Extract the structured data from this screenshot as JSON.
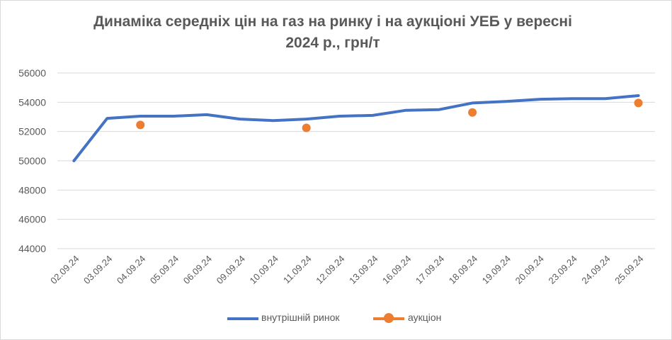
{
  "chart_data": {
    "type": "line",
    "title_line1": "Динаміка середніх цін на газ на ринку і на аукціоні УЕБ у вересні",
    "title_line2": "2024 р., грн/т",
    "categories": [
      "02.09.24",
      "03.09.24",
      "04.09.24",
      "05.09.24",
      "06.09.24",
      "09.09.24",
      "10.09.24",
      "11.09.24",
      "12.09.24",
      "13.09.24",
      "16.09.24",
      "17.09.24",
      "18.09.24",
      "19.09.24",
      "20.09.24",
      "23.09.24",
      "24.09.24",
      "25.09.24"
    ],
    "y_ticks": [
      "44000",
      "46000",
      "48000",
      "50000",
      "52000",
      "54000",
      "56000"
    ],
    "ylim": [
      44000,
      56000
    ],
    "grid": true,
    "legend_position": "bottom",
    "series": [
      {
        "name": "внутрішній ринок",
        "kind": "line",
        "color": "#4472c4",
        "values": [
          50000,
          52900,
          53050,
          53050,
          53150,
          52850,
          52750,
          52850,
          53050,
          53100,
          53450,
          53500,
          53950,
          54050,
          54200,
          54250,
          54250,
          54450
        ]
      },
      {
        "name": "аукціон",
        "kind": "markers",
        "color": "#ed7d31",
        "values": [
          null,
          null,
          52450,
          null,
          null,
          null,
          null,
          52250,
          null,
          null,
          null,
          null,
          53300,
          null,
          null,
          null,
          null,
          53950
        ]
      }
    ]
  }
}
